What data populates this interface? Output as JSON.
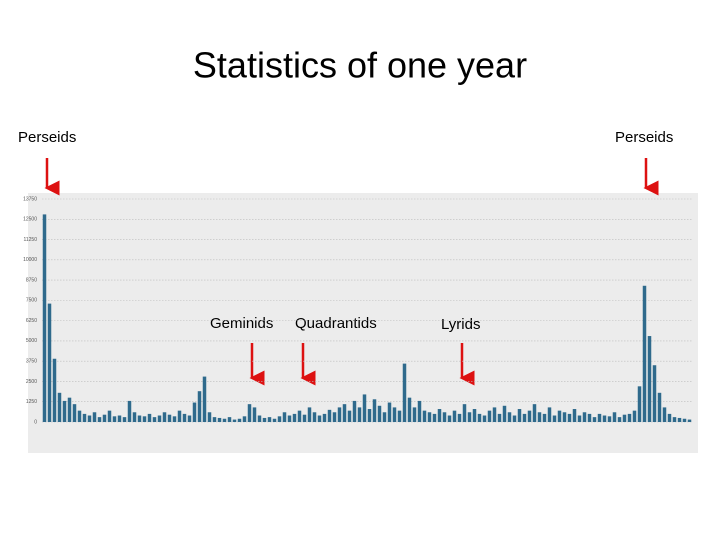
{
  "chart_data": {
    "type": "bar",
    "title": "Statistics of one year",
    "annotations": [
      "Perseids",
      "Perseids",
      "Geminids",
      "Quadrantids",
      "Lyrids"
    ],
    "values": [
      12800,
      7300,
      3900,
      1800,
      1300,
      1500,
      1100,
      700,
      500,
      400,
      600,
      300,
      450,
      700,
      350,
      400,
      300,
      1300,
      600,
      400,
      350,
      500,
      300,
      400,
      600,
      450,
      350,
      700,
      500,
      400,
      1200,
      1900,
      2800,
      600,
      300,
      250,
      200,
      300,
      150,
      200,
      350,
      1100,
      900,
      400,
      250,
      300,
      200,
      350,
      600,
      400,
      500,
      700,
      450,
      900,
      600,
      400,
      500,
      750,
      600,
      900,
      1100,
      700,
      1300,
      900,
      1700,
      800,
      1400,
      1000,
      600,
      1200,
      900,
      700,
      3600,
      1500,
      900,
      1300,
      700,
      600,
      500,
      800,
      600,
      400,
      700,
      500,
      1100,
      600,
      800,
      500,
      400,
      700,
      900,
      500,
      1000,
      600,
      400,
      800,
      500,
      700,
      1100,
      600,
      500,
      900,
      400,
      700,
      600,
      500,
      800,
      400,
      600,
      500,
      300,
      500,
      400,
      350,
      600,
      300,
      450,
      500,
      700,
      2200,
      8400,
      5300,
      3500,
      1800,
      900,
      500,
      300,
      250,
      200,
      150
    ],
    "color": "#2f6a8c",
    "ylim": [
      0,
      13750
    ],
    "yticks": [
      0,
      1250,
      2500,
      3750,
      5000,
      6250,
      7500,
      8750,
      10000,
      11250,
      12500,
      13750
    ],
    "grid": true
  }
}
